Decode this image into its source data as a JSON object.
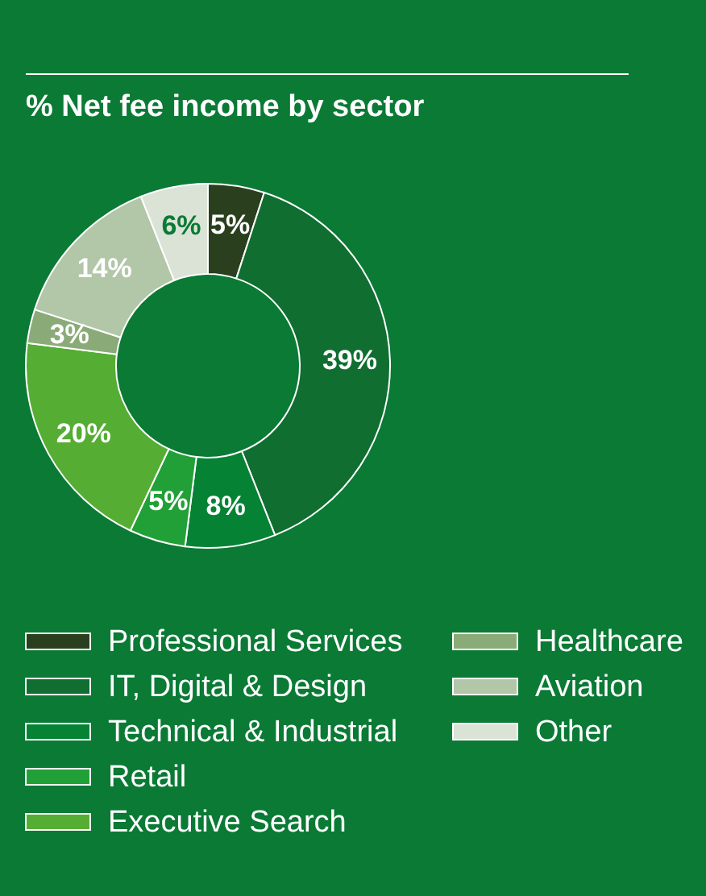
{
  "chart_data": {
    "type": "donut",
    "title": "% Net fee income by sector",
    "categories": [
      "Professional Services",
      "IT, Digital & Design",
      "Technical & Industrial",
      "Retail",
      "Executive Search",
      "Healthcare",
      "Aviation",
      "Other"
    ],
    "values": [
      5,
      39,
      8,
      5,
      20,
      3,
      14,
      6
    ],
    "colors": [
      "#2a3f1e",
      "#0f6e30",
      "#068234",
      "#22a038",
      "#55ad34",
      "#8aab78",
      "#b2c6a8",
      "#dbe3d6"
    ],
    "value_labels": [
      "5%",
      "39%",
      "8%",
      "5%",
      "20%",
      "3%",
      "14%",
      "6%"
    ],
    "legend": "bottom"
  }
}
